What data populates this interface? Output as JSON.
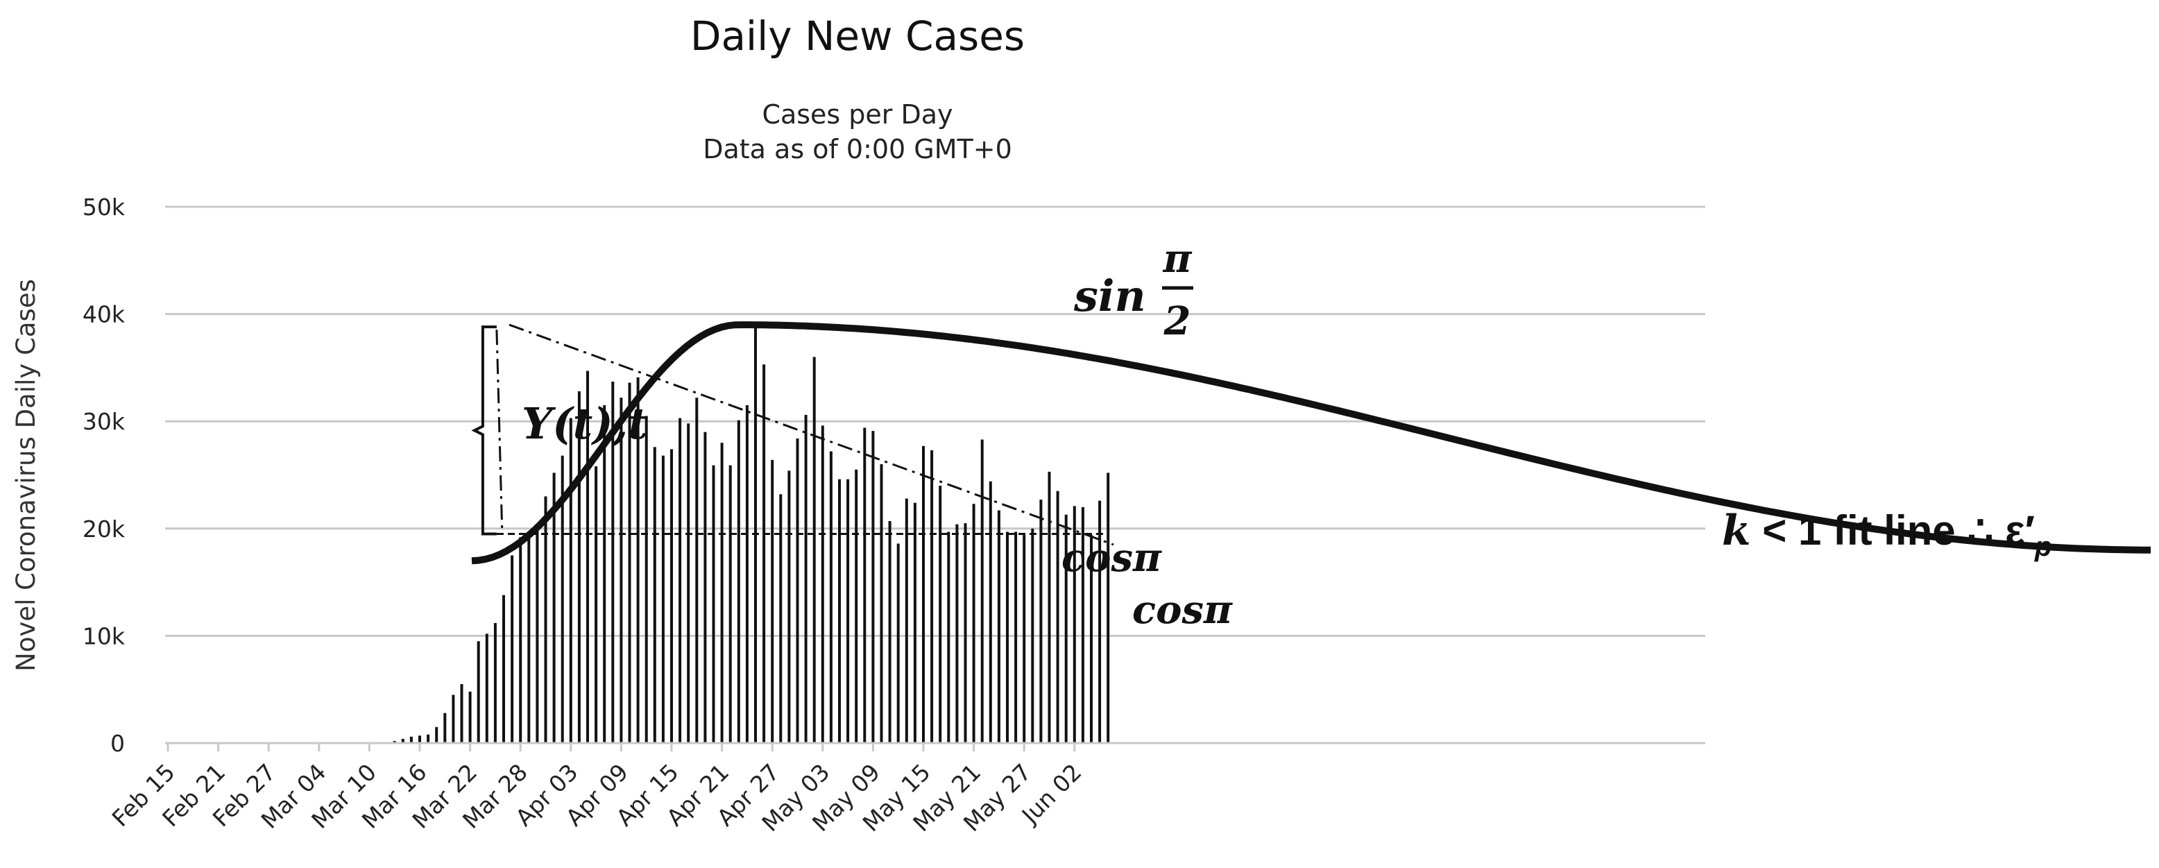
{
  "chart_data": {
    "type": "bar",
    "title": "Daily New Cases",
    "subtitle": [
      "Cases per Day",
      "Data as of 0:00 GMT+0"
    ],
    "ylabel": "Novel Coronavirus Daily Cases",
    "xlabel": "",
    "ylim": [
      0,
      50000
    ],
    "yticks": [
      {
        "value": 0,
        "label": "0"
      },
      {
        "value": 10000,
        "label": "10k"
      },
      {
        "value": 20000,
        "label": "20k"
      },
      {
        "value": 30000,
        "label": "30k"
      },
      {
        "value": 40000,
        "label": "40k"
      },
      {
        "value": 50000,
        "label": "50k"
      }
    ],
    "start_date": "Feb 15",
    "xtick_labels": [
      "Feb 15",
      "Feb 21",
      "Feb 27",
      "Mar 04",
      "Mar 10",
      "Mar 16",
      "Mar 22",
      "Mar 28",
      "Apr 03",
      "Apr 09",
      "Apr 15",
      "Apr 21",
      "Apr 27",
      "May 03",
      "May 09",
      "May 15",
      "May 21",
      "May 27",
      "Jun 02"
    ],
    "xtick_every_days": 6,
    "values": [
      0,
      0,
      0,
      0,
      0,
      0,
      0,
      0,
      0,
      0,
      0,
      0,
      0,
      0,
      0,
      0,
      0,
      0,
      0,
      0,
      0,
      0,
      0,
      0,
      0,
      0,
      0,
      200,
      400,
      600,
      700,
      800,
      1500,
      2800,
      4500,
      5500,
      4800,
      9500,
      10200,
      11200,
      13800,
      17500,
      19200,
      19500,
      20000,
      23000,
      25200,
      26800,
      30300,
      32800,
      34700,
      25800,
      31500,
      33700,
      32200,
      33600,
      34100,
      30500,
      27600,
      26800,
      27400,
      30300,
      29800,
      32200,
      29000,
      25900,
      28000,
      25900,
      30100,
      31500,
      39000,
      35300,
      26400,
      23200,
      25400,
      28400,
      30600,
      36000,
      29600,
      27200,
      24600,
      24600,
      25500,
      29400,
      29100,
      26000,
      20700,
      18600,
      22800,
      22400,
      27700,
      27300,
      24000,
      19700,
      20400,
      20500,
      22300,
      28300,
      24400,
      21700,
      19700,
      19700,
      19400,
      20000,
      22700,
      25300,
      23500,
      21300,
      22100,
      22000,
      19400,
      22600,
      25200
    ],
    "overlays": {
      "sine_curve": {
        "start_value": 17000,
        "peak_value": 39000,
        "peak_date": "Apr 23",
        "end_value": 18000,
        "style": "thick solid"
      },
      "fit_line": {
        "from_date": "Mar 26",
        "from_value": 39000,
        "to_date": "Jun 05",
        "to_value": 18500,
        "style": "dash-dot"
      },
      "baseline": {
        "value": 19500,
        "from_date": "Mar 26",
        "to_date": "Jun 05",
        "style": "dashed"
      },
      "bracket": {
        "date": "Mar 25",
        "from_value": 19500,
        "to_value": 38800
      }
    }
  },
  "annotations": {
    "sin_label": "sin",
    "pi": "π",
    "two": "2",
    "yt_label": "Y(t),t",
    "cos_label_1": "cosπ",
    "cos_label_2": "cosπ",
    "fit_text_k": "k",
    "fit_text_rest": " < 1 fit line ∴ ε′",
    "fit_text_sub": "p"
  }
}
